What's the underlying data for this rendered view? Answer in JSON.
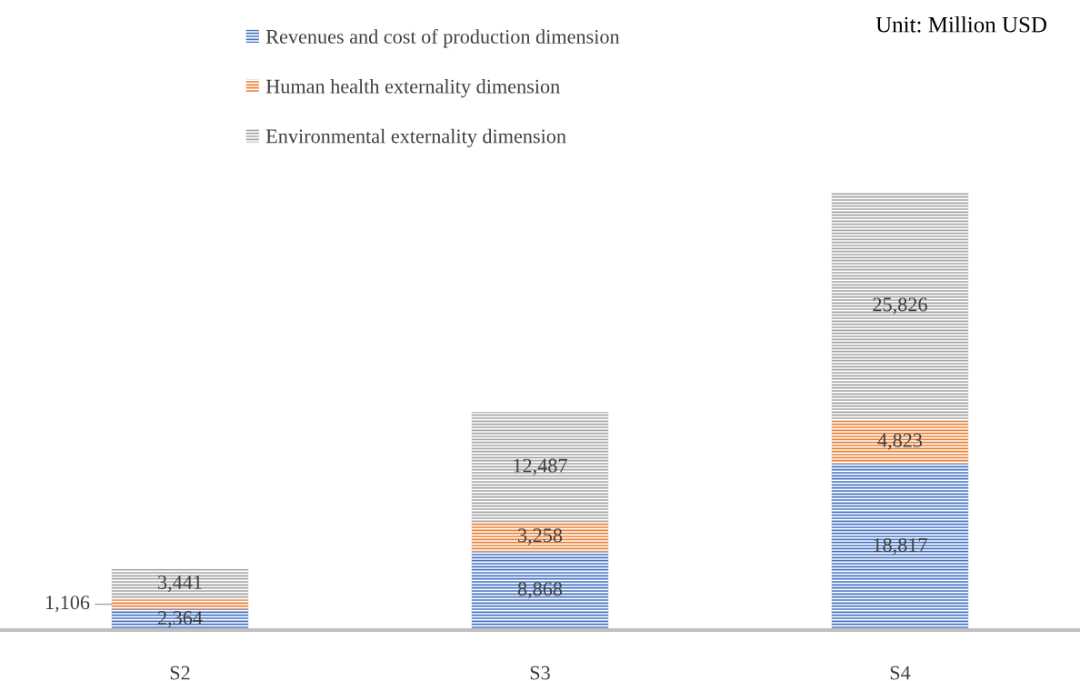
{
  "chart_data": {
    "type": "bar",
    "stacked": true,
    "legend": "top",
    "grid": false,
    "categories": [
      "S2",
      "S3",
      "S4"
    ],
    "series": [
      {
        "name": "Revenues and cost of production dimension",
        "color": "#4472c4",
        "values": [
          2364,
          8868,
          18817
        ],
        "value_labels": [
          "2,364",
          "8,868",
          "18,817"
        ]
      },
      {
        "name": "Human health externality dimension",
        "color": "#ed7d31",
        "values": [
          1106,
          3258,
          4823
        ],
        "value_labels": [
          "1,106",
          "3,258",
          "4,823"
        ]
      },
      {
        "name": "Environmental externality dimension",
        "color": "#a5a5a5",
        "values": [
          3441,
          12487,
          25826
        ],
        "value_labels": [
          "3,441",
          "12,487",
          "25,826"
        ]
      }
    ],
    "annotations": [
      "Unit: Million USD"
    ]
  }
}
